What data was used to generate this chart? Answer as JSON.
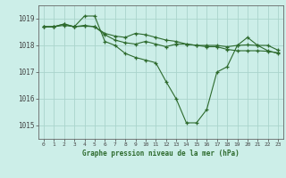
{
  "title": "Graphe pression niveau de la mer (hPa)",
  "bg_color": "#cceee8",
  "grid_color": "#aad4cc",
  "line_color": "#2d6a2d",
  "marker_color": "#2d6a2d",
  "xlim": [
    -0.5,
    23.5
  ],
  "ylim": [
    1014.5,
    1019.5
  ],
  "yticks": [
    1015,
    1016,
    1017,
    1018,
    1019
  ],
  "xticks": [
    0,
    1,
    2,
    3,
    4,
    5,
    6,
    7,
    8,
    9,
    10,
    11,
    12,
    13,
    14,
    15,
    16,
    17,
    18,
    19,
    20,
    21,
    22,
    23
  ],
  "series": [
    [
      1018.7,
      1018.7,
      1018.8,
      1018.7,
      1019.1,
      1019.1,
      1018.15,
      1018.0,
      1017.7,
      1017.55,
      1017.45,
      1017.35,
      1016.65,
      1016.0,
      1015.1,
      1015.1,
      1015.6,
      1017.0,
      1017.2,
      1018.0,
      1018.3,
      1018.0,
      1017.8,
      1017.7
    ],
    [
      1018.7,
      1018.7,
      1018.8,
      1018.7,
      1018.75,
      1018.7,
      1018.45,
      1018.35,
      1018.3,
      1018.45,
      1018.4,
      1018.3,
      1018.2,
      1018.15,
      1018.05,
      1018.0,
      1017.95,
      1017.95,
      1017.85,
      1017.8,
      1017.8,
      1017.8,
      1017.78,
      1017.72
    ],
    [
      1018.7,
      1018.7,
      1018.75,
      1018.7,
      1018.72,
      1018.7,
      1018.4,
      1018.2,
      1018.1,
      1018.05,
      1018.15,
      1018.05,
      1017.95,
      1018.05,
      1018.05,
      1018.0,
      1018.0,
      1018.0,
      1017.95,
      1018.0,
      1018.02,
      1018.0,
      1018.0,
      1017.82
    ]
  ]
}
